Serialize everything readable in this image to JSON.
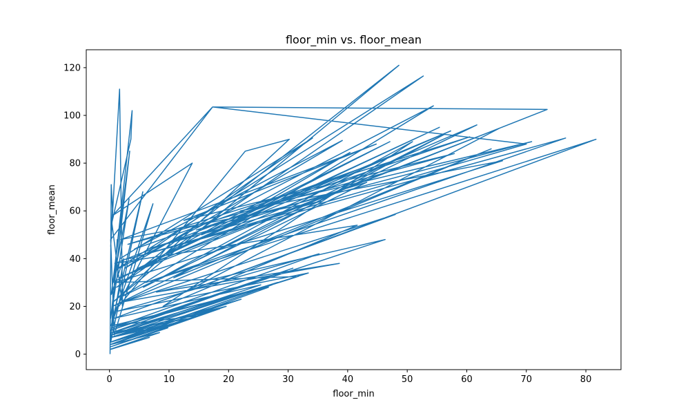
{
  "chart_data": {
    "type": "line",
    "title": "floor_min vs. floor_mean",
    "xlabel": "floor_min",
    "ylabel": "floor_mean",
    "xlim": [
      -3.9,
      85.9
    ],
    "ylim": [
      -6.5,
      127.5
    ],
    "xticks": [
      0,
      10,
      20,
      30,
      40,
      50,
      60,
      70,
      80
    ],
    "yticks": [
      0,
      20,
      40,
      60,
      80,
      100,
      120
    ],
    "grid": false,
    "series": [
      {
        "color": "#1f77b4",
        "x": [
          0.1,
          0.3,
          0.5,
          0.2,
          1.7,
          2.2,
          0.4,
          3.6,
          3.8,
          0.6,
          3.3,
          0.2,
          3.4,
          0.3,
          2.4,
          0.4,
          1.3,
          0.2,
          5.6,
          0.3,
          7.3,
          0.8,
          0.2,
          17.3,
          0.5,
          13.9,
          0.9,
          22.8,
          30.2,
          0.7,
          48.6,
          1.2,
          52.7,
          0.8,
          54.4,
          2.0,
          61.7,
          1.6,
          73.5,
          17.4,
          70.0,
          3.4,
          76.6,
          6.1,
          81.7,
          12.7,
          65.4,
          4.8,
          55.4,
          9.5,
          57.3,
          15.5,
          47.1,
          20.3,
          40.4,
          0.6,
          1.8,
          34.1,
          2.6,
          39.1,
          4.2,
          42.5,
          0.9,
          41.6,
          9.0,
          50.9,
          5.7,
          56.2,
          10.8,
          64.1,
          0.5,
          43.2,
          6.4,
          35.5,
          1.9,
          44.8,
          12.5,
          57.9,
          3.1,
          60.5,
          14.6,
          70.9,
          22.0,
          66.0,
          1.0,
          31.7,
          0.3,
          25.4,
          0.8,
          48.0,
          2.5,
          38.6,
          7.9,
          46.3,
          0.2,
          30.8,
          0.4,
          28.2,
          0.2,
          22.1,
          0.1,
          27.3,
          0.5,
          35.2,
          1.4,
          33.4,
          0.3,
          19.6,
          0.1,
          26.7,
          0.6,
          14.8,
          0.2,
          13.5,
          0.4,
          9.8,
          0.1,
          18.5,
          0.3,
          11.2,
          0.2,
          8.4,
          0.1,
          6.7,
          0.2
        ],
        "y": [
          0,
          71,
          61,
          45,
          111,
          20,
          55,
          90,
          102,
          30,
          65,
          15,
          85,
          25,
          40,
          10,
          48,
          5,
          68,
          12,
          63,
          8,
          48,
          103.5,
          58,
          80,
          18,
          85,
          90,
          22,
          121,
          28,
          116.5,
          35,
          104,
          24,
          96,
          32,
          102.5,
          103.5,
          88,
          40,
          90.5,
          30,
          90,
          26,
          94.5,
          36,
          95,
          42,
          93.5,
          50,
          89,
          55,
          84.5,
          30,
          40,
          90.5,
          36,
          89.5,
          44,
          78,
          38,
          54,
          20,
          89,
          28,
          92,
          32,
          86,
          20,
          72,
          44,
          64,
          48,
          88,
          56,
          84,
          46,
          91,
          52,
          89,
          60,
          81,
          30,
          32.5,
          8,
          29,
          15,
          58.5,
          22,
          38,
          26,
          48,
          10,
          36,
          9,
          30,
          7,
          23,
          5,
          29,
          11,
          42,
          18,
          34,
          8,
          20,
          4,
          28,
          12,
          16,
          5,
          15,
          9,
          11,
          3,
          19,
          7,
          13,
          4,
          9,
          2,
          7,
          2
        ]
      }
    ]
  }
}
